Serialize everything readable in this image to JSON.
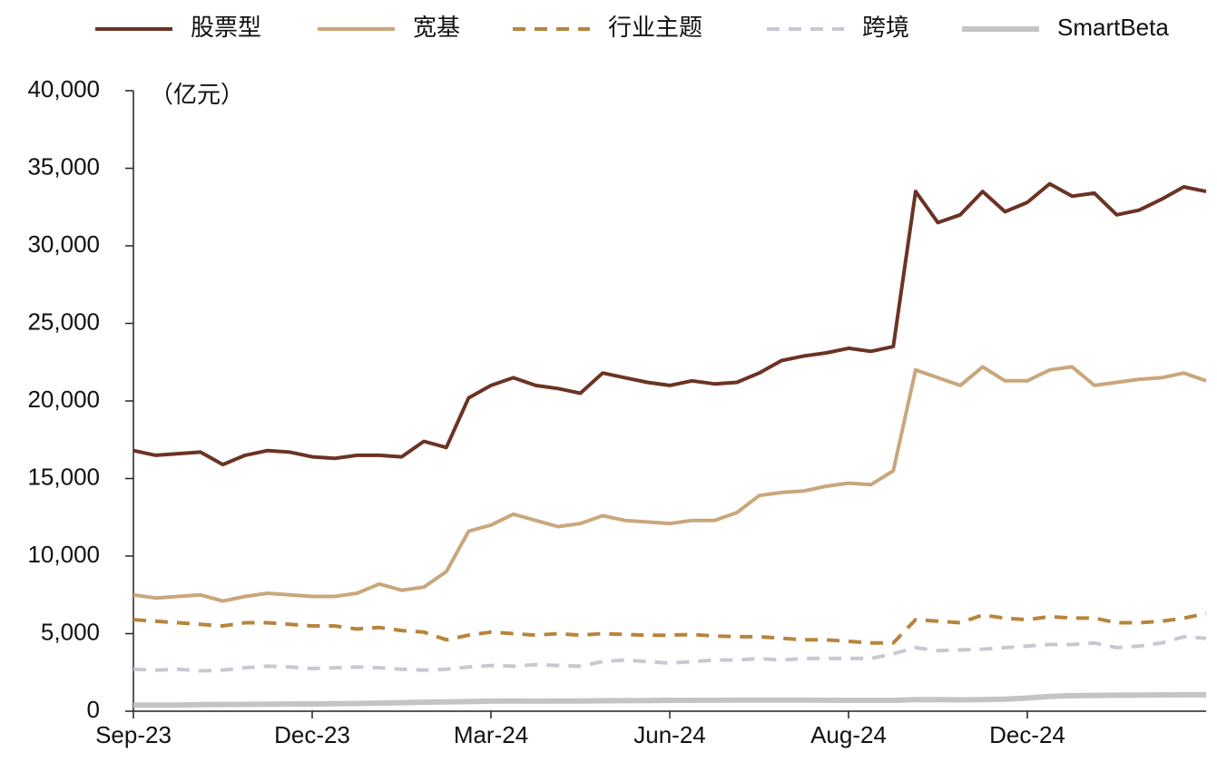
{
  "chart_data": {
    "type": "line",
    "y_label": "（亿元）",
    "ylim": [
      0,
      40000
    ],
    "yticks": [
      0,
      {
        "value": 5000,
        "label": "5,000"
      },
      {
        "value": 10000,
        "label": "10,000"
      },
      {
        "value": 15000,
        "label": "15,000"
      },
      {
        "value": 20000,
        "label": "20,000"
      },
      {
        "value": 25000,
        "label": "25,000"
      },
      {
        "value": 30000,
        "label": "30,000"
      },
      {
        "value": 35000,
        "label": "35,000"
      },
      {
        "value": 40000,
        "label": "40,000"
      }
    ],
    "categories": [
      "Sep-23",
      null,
      null,
      null,
      null,
      null,
      null,
      null,
      "Dec-23",
      null,
      null,
      null,
      null,
      null,
      null,
      null,
      "Mar-24",
      null,
      null,
      null,
      null,
      null,
      null,
      null,
      "Jun-24",
      null,
      null,
      null,
      null,
      null,
      null,
      null,
      "Aug-24",
      null,
      null,
      null,
      null,
      null,
      null,
      null,
      "Dec-24",
      null,
      null,
      null,
      null,
      null,
      null,
      null,
      null
    ],
    "series": [
      {
        "name": "股票型",
        "color": "#6b3324",
        "style": "solid",
        "line_width": 4,
        "values": [
          16800,
          16500,
          16600,
          16700,
          15900,
          16500,
          16800,
          16700,
          16400,
          16300,
          16500,
          16500,
          16400,
          17400,
          17000,
          20200,
          21000,
          21500,
          21000,
          20800,
          20500,
          21800,
          21500,
          21200,
          21000,
          21300,
          21100,
          21200,
          21800,
          22600,
          22900,
          23100,
          23400,
          23200,
          23500,
          33500,
          31500,
          32000,
          33500,
          32200,
          32800,
          34000,
          33200,
          33400,
          32000,
          32300,
          33000,
          33800,
          33500
        ]
      },
      {
        "name": "宽基",
        "color": "#c9a77c",
        "style": "solid",
        "line_width": 4,
        "values": [
          7500,
          7300,
          7400,
          7500,
          7100,
          7400,
          7600,
          7500,
          7400,
          7400,
          7600,
          8200,
          7800,
          8000,
          9000,
          11600,
          12000,
          12700,
          12300,
          11900,
          12100,
          12600,
          12300,
          12200,
          12100,
          12300,
          12300,
          12800,
          13900,
          14100,
          14200,
          14500,
          14700,
          14600,
          15500,
          22000,
          21500,
          21000,
          22200,
          21300,
          21300,
          22000,
          22200,
          21000,
          21200,
          21400,
          21500,
          21800,
          21300
        ]
      },
      {
        "name": "行业主题",
        "color": "#b8843c",
        "style": "dashed",
        "line_width": 4,
        "values": [
          5900,
          5800,
          5700,
          5600,
          5500,
          5700,
          5700,
          5600,
          5500,
          5500,
          5300,
          5400,
          5200,
          5100,
          4600,
          4900,
          5100,
          5000,
          4900,
          5000,
          4900,
          5000,
          4950,
          4900,
          4900,
          4950,
          4850,
          4800,
          4800,
          4700,
          4600,
          4600,
          4500,
          4400,
          4400,
          5900,
          5800,
          5700,
          6200,
          6000,
          5900,
          6100,
          6000,
          6000,
          5700,
          5700,
          5800,
          6000,
          6300
        ]
      },
      {
        "name": "跨境",
        "color": "#c8c8d2",
        "style": "dashed",
        "line_width": 4,
        "values": [
          2700,
          2650,
          2700,
          2600,
          2650,
          2800,
          2900,
          2850,
          2750,
          2800,
          2850,
          2800,
          2700,
          2650,
          2700,
          2850,
          2950,
          2900,
          3000,
          2950,
          2900,
          3200,
          3300,
          3200,
          3100,
          3200,
          3300,
          3300,
          3400,
          3300,
          3400,
          3400,
          3400,
          3400,
          3700,
          4100,
          3900,
          3950,
          4000,
          4100,
          4200,
          4300,
          4300,
          4400,
          4100,
          4200,
          4400,
          4800,
          4700
        ]
      },
      {
        "name": "SmartBeta",
        "color": "#c4c4c4",
        "style": "solid",
        "line_width": 6,
        "values": [
          400,
          400,
          400,
          420,
          430,
          440,
          450,
          460,
          470,
          480,
          500,
          520,
          550,
          580,
          600,
          620,
          650,
          660,
          650,
          660,
          660,
          670,
          680,
          690,
          700,
          700,
          710,
          720,
          720,
          720,
          720,
          710,
          700,
          700,
          700,
          750,
          740,
          730,
          750,
          780,
          850,
          950,
          1000,
          1020,
          1030,
          1040,
          1050,
          1060,
          1060
        ]
      }
    ]
  }
}
